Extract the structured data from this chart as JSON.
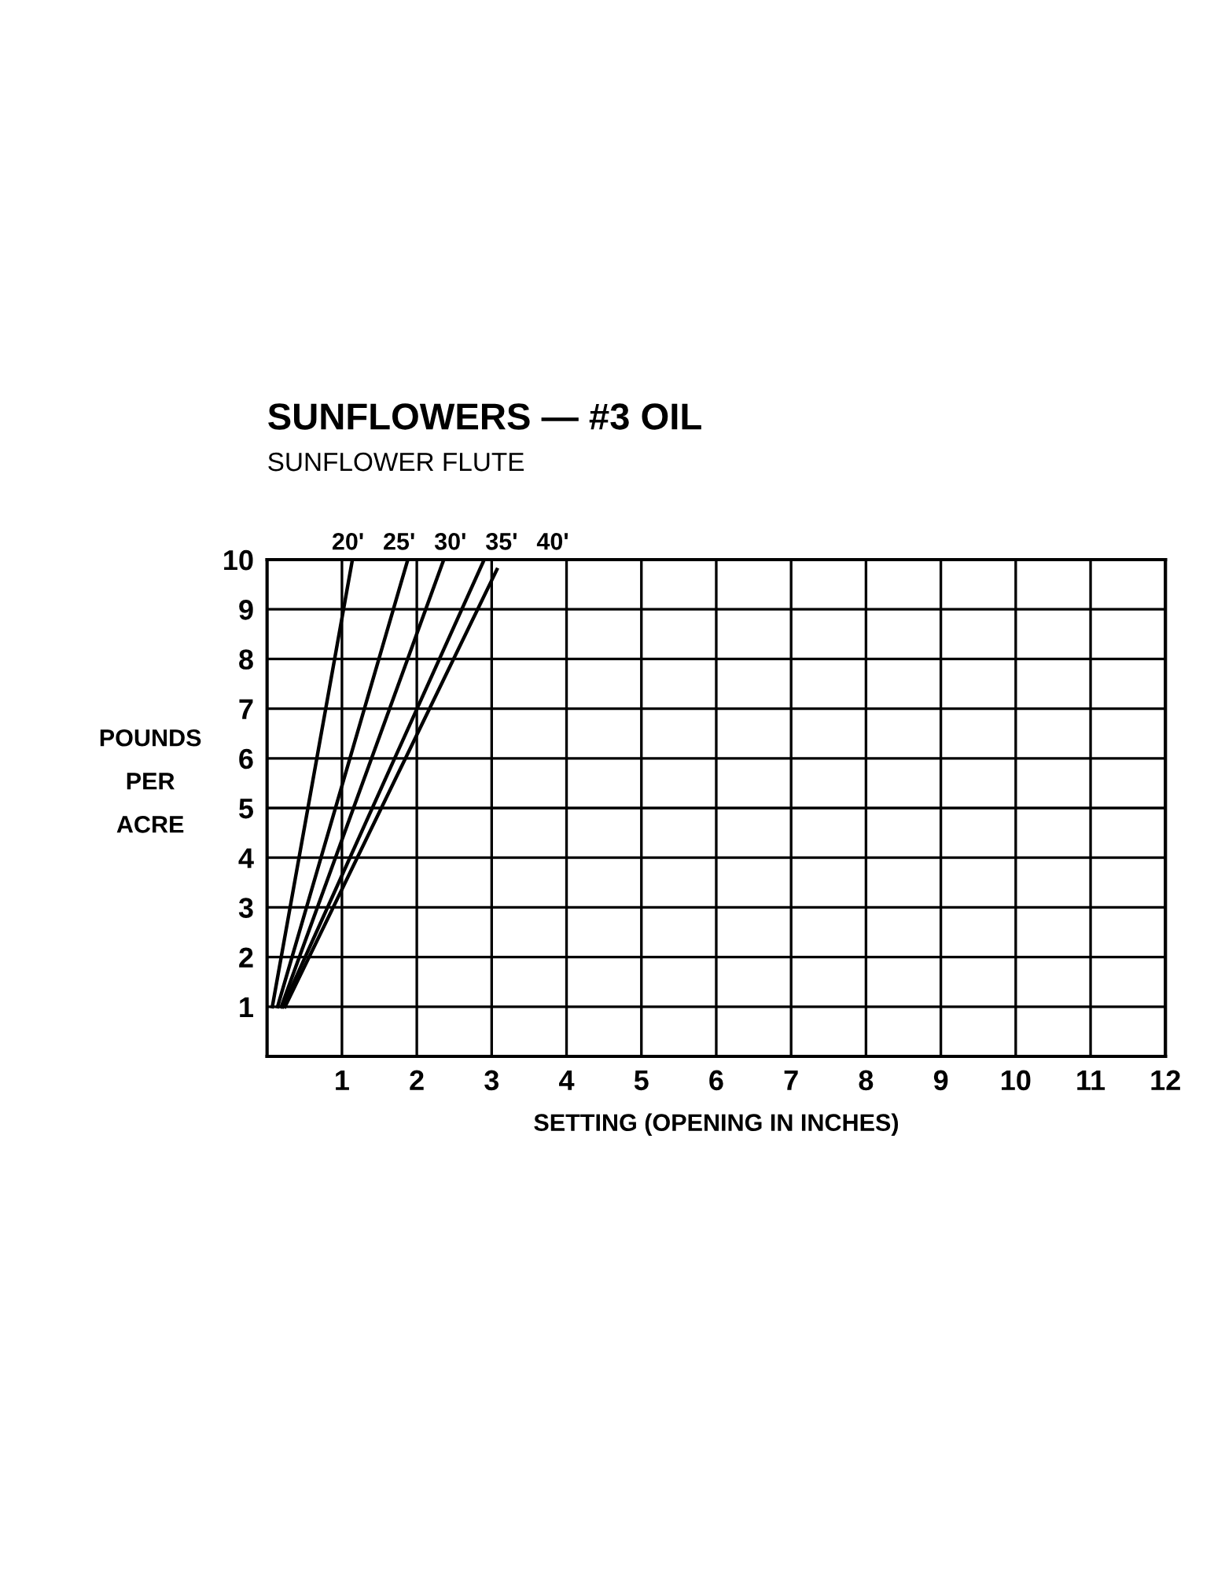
{
  "chart_data": {
    "type": "line",
    "title": "SUNFLOWERS — #3 OIL",
    "subtitle": "SUNFLOWER FLUTE",
    "xlabel": "SETTING (OPENING IN INCHES)",
    "ylabel": "POUNDS\nPER\nACRE",
    "series": [
      {
        "name": "20'",
        "color": "#000000",
        "x": [
          0.07,
          1.14
        ],
        "values": [
          1,
          10
        ]
      },
      {
        "name": "25'",
        "color": "#000000",
        "x": [
          0.14,
          1.88
        ],
        "values": [
          1,
          10
        ]
      },
      {
        "name": "30'",
        "color": "#000000",
        "x": [
          0.19,
          2.36
        ],
        "values": [
          1,
          10
        ]
      },
      {
        "name": "35'",
        "color": "#000000",
        "x": [
          0.21,
          2.9
        ],
        "values": [
          1,
          10
        ]
      },
      {
        "name": "40'",
        "color": "#000000",
        "x": [
          0.24,
          3.07
        ],
        "values": [
          1,
          9.8
        ]
      }
    ],
    "xlim": [
      0,
      12
    ],
    "xticks": [
      1,
      2,
      3,
      4,
      5,
      6,
      7,
      8,
      9,
      10,
      11,
      12
    ],
    "ylim": [
      0,
      10
    ],
    "yticks": [
      1,
      2,
      3,
      4,
      5,
      6,
      7,
      8,
      9,
      10
    ],
    "grid": true,
    "marker": "none",
    "line_style": "solid",
    "legend": false
  }
}
